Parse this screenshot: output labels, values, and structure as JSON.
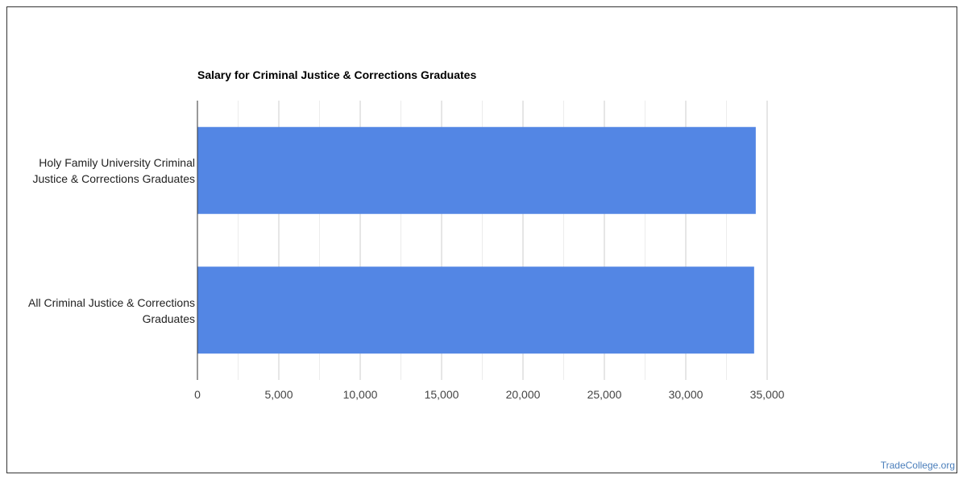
{
  "chart_data": {
    "type": "bar",
    "orientation": "horizontal",
    "title": "Salary for Criminal Justice & Corrections Graduates",
    "categories": [
      "Holy Family University Criminal Justice & Corrections Graduates",
      "All Criminal Justice & Corrections Graduates"
    ],
    "values": [
      34300,
      34200
    ],
    "xlim": [
      0,
      35000
    ],
    "xticks": [
      0,
      5000,
      10000,
      15000,
      20000,
      25000,
      30000,
      35000
    ],
    "tick_labels": [
      "0",
      "5,000",
      "10,000",
      "15,000",
      "20,000",
      "25,000",
      "30,000",
      "35,000"
    ],
    "grid": true,
    "bar_color": "#5386e4"
  },
  "watermark": "TradeCollege.org",
  "colors": {
    "bar": "#5386e4",
    "grid": "#d8d8d8",
    "axis": "#333333"
  }
}
